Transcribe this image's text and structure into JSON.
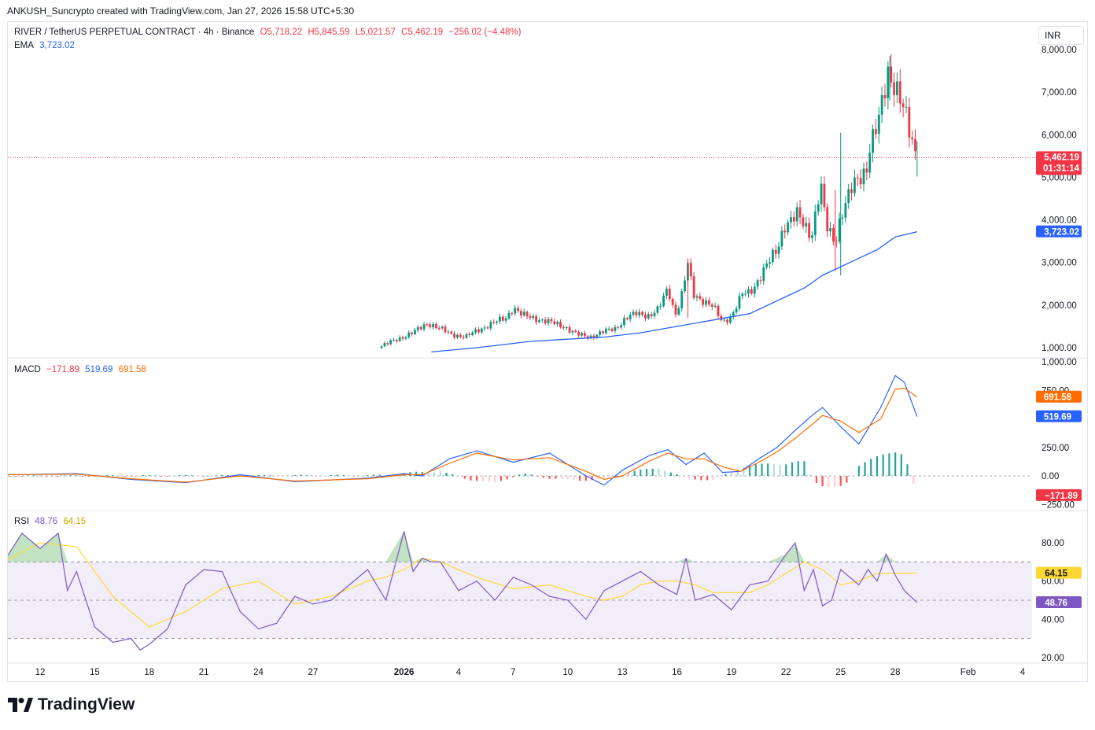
{
  "header": {
    "attribution": "ANKUSH_Suncrypto created with TradingView.com, Jan 27, 2026 15:58 UTC+5:30"
  },
  "legend": {
    "symbol": "RIVER / TetherUS PERPETUAL CONTRACT · 4h · Binance",
    "open": "O5,718.22",
    "high": "H5,845.59",
    "low": "L5,021.57",
    "close": "C5,462.19",
    "change": "−256.02 (−4.48%)",
    "ema_label": "EMA",
    "ema_value": "3,723.02",
    "macd_label": "MACD",
    "macd_hist": "−171.89",
    "macd_line": "519.69",
    "macd_signal": "691.58",
    "rsi_label": "RSI",
    "rsi_value": "48.76",
    "rsi_ma": "64.15"
  },
  "currency_button": "INR",
  "badges": {
    "last_price": "5,462.19",
    "countdown": "01:31:14",
    "ema": "3,723.02",
    "macd_signal": "691.58",
    "macd_line": "519.69",
    "macd_hist": "−171.89",
    "rsi_ma": "64.15",
    "rsi": "48.76"
  },
  "brand": "TradingView",
  "colors": {
    "up": "#089981",
    "down": "#f23645",
    "ema": "#2962ff",
    "macd_line": "#2962ff",
    "macd_signal": "#ff6d00",
    "rsi": "#7e57c2",
    "rsi_ma": "#fdd835",
    "rsi_band": "#7e57c2"
  },
  "chart_data": [
    {
      "type": "candlestick",
      "panel": "price",
      "ylim": [
        900,
        8200
      ],
      "y_ticks": [
        "1,000.00",
        "2,000.00",
        "3,000.00",
        "4,000.00",
        "5,000.00",
        "6,000.00",
        "7,000.00",
        "8,000.00"
      ],
      "x_ticks": [
        "12",
        "15",
        "18",
        "21",
        "24",
        "27",
        "2026",
        "4",
        "7",
        "10",
        "13",
        "16",
        "19",
        "22",
        "25",
        "28",
        "Feb",
        "4"
      ],
      "x_tick_days": [
        -20,
        -17,
        -14,
        -11,
        -8,
        -5,
        0,
        3,
        6,
        9,
        12,
        15,
        18,
        21,
        24,
        27,
        31,
        34
      ],
      "x_range_days": [
        -22,
        35
      ],
      "close_path": [
        [
          -1.4,
          1000
        ],
        [
          -0.5,
          1180
        ],
        [
          0.5,
          1350
        ],
        [
          1.3,
          1580
        ],
        [
          1.7,
          1500
        ],
        [
          2.6,
          1320
        ],
        [
          3.4,
          1250
        ],
        [
          4.0,
          1400
        ],
        [
          4.8,
          1560
        ],
        [
          5.6,
          1700
        ],
        [
          6.0,
          1950
        ],
        [
          6.5,
          1760
        ],
        [
          7.3,
          1680
        ],
        [
          8.0,
          1600
        ],
        [
          8.8,
          1500
        ],
        [
          9.5,
          1310
        ],
        [
          10.2,
          1250
        ],
        [
          11.0,
          1380
        ],
        [
          11.6,
          1450
        ],
        [
          12.2,
          1700
        ],
        [
          12.8,
          1800
        ],
        [
          13.5,
          1760
        ],
        [
          14.0,
          1900
        ],
        [
          14.5,
          2400
        ],
        [
          14.9,
          1780
        ],
        [
          15.2,
          2100
        ],
        [
          15.6,
          2950
        ],
        [
          15.9,
          2250
        ],
        [
          16.5,
          2100
        ],
        [
          17.0,
          1950
        ],
        [
          17.5,
          1600
        ],
        [
          18.0,
          1750
        ],
        [
          18.6,
          2250
        ],
        [
          19.0,
          2300
        ],
        [
          19.4,
          2550
        ],
        [
          19.9,
          2900
        ],
        [
          20.5,
          3300
        ],
        [
          20.9,
          3900
        ],
        [
          21.2,
          3950
        ],
        [
          21.6,
          4100
        ],
        [
          22.0,
          3900
        ],
        [
          22.4,
          3650
        ],
        [
          22.9,
          4800
        ],
        [
          23.2,
          3850
        ],
        [
          23.7,
          3500
        ],
        [
          24.0,
          4100
        ],
        [
          24.6,
          4700
        ],
        [
          25.0,
          5000
        ],
        [
          25.4,
          5200
        ],
        [
          25.6,
          5700
        ],
        [
          26.1,
          6300
        ],
        [
          26.6,
          7500
        ],
        [
          27.0,
          7200
        ],
        [
          27.5,
          6500
        ],
        [
          27.8,
          6000
        ],
        [
          28.2,
          5462
        ]
      ],
      "wicks": [
        [
          24.0,
          6050,
          2700
        ],
        [
          23.7,
          4700,
          2800
        ],
        [
          15.6,
          3100,
          1700
        ],
        [
          26.7,
          7850,
          6800
        ],
        [
          28.2,
          5845,
          5021
        ]
      ],
      "last_price": 5462.19
    },
    {
      "type": "line",
      "panel": "price",
      "name": "EMA",
      "x_days": [
        1.5,
        4,
        7,
        9,
        11,
        13,
        15,
        17,
        19,
        21,
        22,
        23,
        24,
        25,
        26,
        27,
        28.2
      ],
      "values": [
        900,
        1000,
        1150,
        1200,
        1250,
        1350,
        1500,
        1650,
        1800,
        2200,
        2400,
        2700,
        2900,
        3100,
        3300,
        3600,
        3723
      ]
    },
    {
      "type": "line",
      "panel": "macd",
      "ylim": [
        -280,
        1050
      ],
      "y_ticks": [
        "1,000.00",
        "750.00",
        "250.00",
        "0.00",
        "−250.00"
      ],
      "series": [
        {
          "name": "MACD",
          "x_days": [
            -22,
            -18,
            -15,
            -12,
            -9,
            -6,
            -2,
            0,
            1,
            2.5,
            4,
            6,
            8,
            10,
            11,
            12,
            13.5,
            14.5,
            15.5,
            16.5,
            17.5,
            18.5,
            19.5,
            20.5,
            21.5,
            22.5,
            23,
            24,
            25,
            26.2,
            27,
            27.5,
            28.2
          ],
          "values": [
            10,
            20,
            -30,
            -60,
            10,
            -50,
            -20,
            20,
            0,
            150,
            220,
            120,
            200,
            0,
            -80,
            50,
            180,
            230,
            100,
            200,
            30,
            40,
            150,
            250,
            400,
            540,
            600,
            430,
            280,
            600,
            880,
            820,
            520
          ]
        },
        {
          "name": "Signal",
          "x_days": [
            -22,
            -18,
            -15,
            -12,
            -9,
            -6,
            -2,
            0,
            1,
            2.5,
            4,
            6,
            8,
            10,
            11,
            12,
            13.5,
            14.5,
            15.5,
            16.5,
            17.5,
            18.5,
            19.5,
            20.5,
            21.5,
            22.5,
            23,
            24,
            25,
            26.2,
            27,
            27.5,
            28.2
          ],
          "values": [
            10,
            15,
            -25,
            -55,
            0,
            -45,
            -25,
            10,
            10,
            110,
            200,
            140,
            160,
            40,
            -30,
            0,
            130,
            200,
            150,
            150,
            80,
            40,
            120,
            210,
            330,
            460,
            530,
            480,
            380,
            500,
            760,
            770,
            692
          ]
        },
        {
          "name": "Histogram",
          "bars_days": [
            -1,
            0.5,
            2,
            3.5,
            5,
            6.5,
            8,
            9.5,
            11,
            12.5,
            14,
            15.5,
            17,
            18.5,
            20,
            21,
            21.5,
            22,
            22.5,
            23,
            23.5,
            24,
            24.5,
            25,
            25.5,
            26,
            26.5,
            27,
            27.5,
            28.2
          ],
          "bars_values": [
            10,
            30,
            40,
            -30,
            -60,
            20,
            -20,
            -40,
            -30,
            40,
            70,
            -20,
            -40,
            80,
            110,
            100,
            120,
            130,
            -40,
            -90,
            -110,
            -90,
            -40,
            90,
            130,
            170,
            200,
            210,
            180,
            -172
          ]
        }
      ]
    },
    {
      "type": "line",
      "panel": "rsi",
      "ylim": [
        18,
        92
      ],
      "y_ticks": [
        "80.00",
        "60.00",
        "40.00",
        "20.00"
      ],
      "bands": [
        30,
        50,
        70
      ],
      "series": [
        {
          "name": "RSI",
          "x_days": [
            -22,
            -21,
            -20,
            -19,
            -18.5,
            -18,
            -17,
            -16,
            -15,
            -14.5,
            -14,
            -13,
            -12,
            -11,
            -10,
            -9,
            -8,
            -7,
            -6,
            -5,
            -4,
            -3,
            -2,
            -1,
            0,
            0.5,
            1,
            1.5,
            2,
            3,
            4,
            5,
            6,
            7,
            8,
            9,
            10,
            11,
            12,
            13,
            14,
            15,
            15.5,
            16,
            17,
            18,
            19,
            20,
            21,
            21.5,
            22,
            22.5,
            23,
            23.5,
            24,
            25,
            25.5,
            26,
            26.5,
            27,
            27.5,
            28.2
          ],
          "values": [
            70,
            85,
            77,
            85,
            55,
            65,
            36,
            28,
            30,
            24,
            27,
            35,
            58,
            66,
            65,
            44,
            35,
            38,
            52,
            48,
            50,
            58,
            66,
            50,
            86,
            65,
            72,
            70,
            70,
            55,
            60,
            50,
            62,
            58,
            52,
            50,
            40,
            55,
            60,
            65,
            58,
            53,
            72,
            50,
            53,
            45,
            58,
            60,
            74,
            80,
            55,
            66,
            47,
            50,
            66,
            58,
            66,
            60,
            74,
            63,
            55,
            48.76
          ]
        },
        {
          "name": "RSI-based MA",
          "x_days": [
            -22,
            -20,
            -18,
            -17,
            -16,
            -15,
            -14,
            -12,
            -10,
            -8,
            -6,
            -4,
            -2,
            -1,
            0,
            1,
            2,
            3,
            4,
            6,
            8,
            10,
            11,
            12,
            13,
            14,
            15,
            16,
            17,
            18,
            19,
            20,
            21,
            22,
            23,
            24,
            25,
            26,
            27,
            28.2
          ],
          "values": [
            70,
            80,
            78,
            65,
            52,
            44,
            36,
            44,
            56,
            60,
            48,
            52,
            60,
            62,
            66,
            72,
            70,
            66,
            62,
            56,
            58,
            52,
            50,
            52,
            58,
            60,
            60,
            58,
            54,
            54,
            54,
            58,
            64,
            70,
            66,
            58,
            60,
            64,
            64,
            64.15
          ]
        }
      ]
    }
  ]
}
